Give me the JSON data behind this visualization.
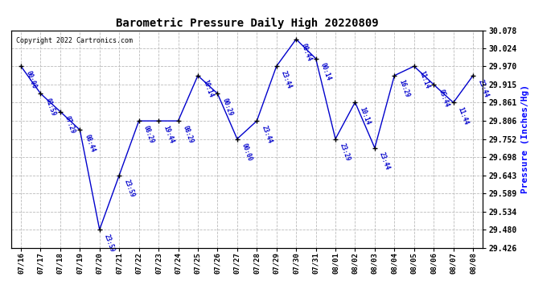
{
  "title": "Barometric Pressure Daily High 20220809",
  "ylabel": "Pressure (Inches/Hg)",
  "copyright": "Copyright 2022 Cartronics.com",
  "background_color": "#ffffff",
  "line_color": "#0000cc",
  "point_color": "#000000",
  "label_color": "#0000cc",
  "title_color": "#000000",
  "ylabel_color": "#0000ff",
  "ylim": [
    29.426,
    30.078
  ],
  "yticks": [
    29.426,
    29.48,
    29.534,
    29.589,
    29.643,
    29.698,
    29.752,
    29.806,
    29.861,
    29.915,
    29.97,
    30.024,
    30.078
  ],
  "points": [
    {
      "date": "07/16",
      "time": "00:00",
      "value": 29.97
    },
    {
      "date": "07/17",
      "time": "01:59",
      "value": 29.888
    },
    {
      "date": "07/18",
      "time": "07:29",
      "value": 29.834
    },
    {
      "date": "07/19",
      "time": "08:44",
      "value": 29.779
    },
    {
      "date": "07/20",
      "time": "23:59",
      "value": 29.48
    },
    {
      "date": "07/21",
      "time": "23:59",
      "value": 29.643
    },
    {
      "date": "07/22",
      "time": "08:29",
      "value": 29.806
    },
    {
      "date": "07/23",
      "time": "19:44",
      "value": 29.806
    },
    {
      "date": "07/24",
      "time": "08:29",
      "value": 29.806
    },
    {
      "date": "07/25",
      "time": "10:14",
      "value": 29.942
    },
    {
      "date": "07/26",
      "time": "00:29",
      "value": 29.888
    },
    {
      "date": "07/27",
      "time": "00:00",
      "value": 29.752
    },
    {
      "date": "07/28",
      "time": "23:44",
      "value": 29.806
    },
    {
      "date": "07/29",
      "time": "23:44",
      "value": 29.97
    },
    {
      "date": "07/30",
      "time": "08:44",
      "value": 30.051
    },
    {
      "date": "07/31",
      "time": "00:14",
      "value": 29.993
    },
    {
      "date": "08/01",
      "time": "23:29",
      "value": 29.752
    },
    {
      "date": "08/02",
      "time": "10:14",
      "value": 29.862
    },
    {
      "date": "08/03",
      "time": "23:44",
      "value": 29.725
    },
    {
      "date": "08/04",
      "time": "16:29",
      "value": 29.942
    },
    {
      "date": "08/05",
      "time": "11:14",
      "value": 29.97
    },
    {
      "date": "08/06",
      "time": "05:44",
      "value": 29.915
    },
    {
      "date": "08/07",
      "time": "11:44",
      "value": 29.861
    },
    {
      "date": "08/08",
      "time": "23:44",
      "value": 29.942
    }
  ]
}
